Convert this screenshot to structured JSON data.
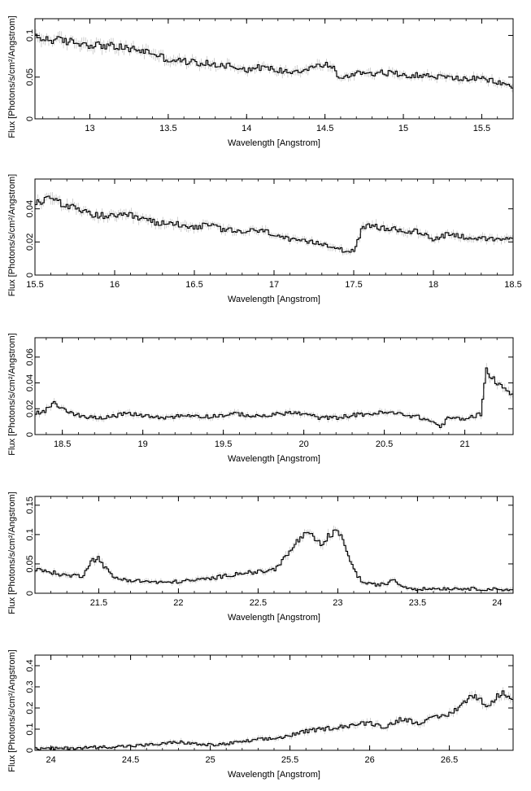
{
  "chart_data": [
    {
      "type": "line",
      "xlabel": "Wavelength [Angstrom]",
      "ylabel": "Flux [Photons/s/cm²/Angstrom]",
      "xlim": [
        12.65,
        15.7
      ],
      "ylim": [
        0,
        0.12
      ],
      "xticks": [
        "13",
        "13.5",
        "14",
        "14.5",
        "15",
        "15.5"
      ],
      "yticks": [
        "0",
        "0.05",
        "0.1"
      ],
      "grid": false,
      "points": [
        [
          12.65,
          0.097
        ],
        [
          12.8,
          0.094
        ],
        [
          12.9,
          0.092
        ],
        [
          13.0,
          0.089
        ],
        [
          13.1,
          0.088
        ],
        [
          13.2,
          0.085
        ],
        [
          13.3,
          0.083
        ],
        [
          13.4,
          0.079
        ],
        [
          13.5,
          0.071
        ],
        [
          13.6,
          0.069
        ],
        [
          13.7,
          0.067
        ],
        [
          13.8,
          0.065
        ],
        [
          13.9,
          0.064
        ],
        [
          14.0,
          0.059
        ],
        [
          14.1,
          0.062
        ],
        [
          14.2,
          0.058
        ],
        [
          14.3,
          0.057
        ],
        [
          14.4,
          0.061
        ],
        [
          14.5,
          0.065
        ],
        [
          14.55,
          0.063
        ],
        [
          14.6,
          0.046
        ],
        [
          14.7,
          0.056
        ],
        [
          14.8,
          0.055
        ],
        [
          14.9,
          0.055
        ],
        [
          15.0,
          0.053
        ],
        [
          15.1,
          0.052
        ],
        [
          15.2,
          0.051
        ],
        [
          15.3,
          0.049
        ],
        [
          15.4,
          0.048
        ],
        [
          15.5,
          0.048
        ],
        [
          15.6,
          0.044
        ],
        [
          15.7,
          0.038
        ]
      ]
    },
    {
      "type": "line",
      "xlabel": "Wavelength [Angstrom]",
      "ylabel": "Flux [Photons/s/cm²/Angstrom]",
      "xlim": [
        15.5,
        18.5
      ],
      "ylim": [
        0,
        0.058
      ],
      "xticks": [
        "15.5",
        "16",
        "16.5",
        "17",
        "17.5",
        "18",
        "18.5"
      ],
      "yticks": [
        "0",
        "0.02",
        "0.04"
      ],
      "grid": false,
      "points": [
        [
          15.5,
          0.043
        ],
        [
          15.6,
          0.047
        ],
        [
          15.7,
          0.042
        ],
        [
          15.8,
          0.038
        ],
        [
          15.9,
          0.036
        ],
        [
          16.0,
          0.035
        ],
        [
          16.1,
          0.036
        ],
        [
          16.2,
          0.033
        ],
        [
          16.3,
          0.031
        ],
        [
          16.4,
          0.031
        ],
        [
          16.5,
          0.029
        ],
        [
          16.6,
          0.03
        ],
        [
          16.7,
          0.027
        ],
        [
          16.8,
          0.026
        ],
        [
          16.9,
          0.027
        ],
        [
          17.0,
          0.025
        ],
        [
          17.1,
          0.021
        ],
        [
          17.2,
          0.02
        ],
        [
          17.3,
          0.019
        ],
        [
          17.4,
          0.017
        ],
        [
          17.45,
          0.014
        ],
        [
          17.5,
          0.015
        ],
        [
          17.55,
          0.027
        ],
        [
          17.6,
          0.03
        ],
        [
          17.7,
          0.028
        ],
        [
          17.8,
          0.027
        ],
        [
          17.9,
          0.026
        ],
        [
          18.0,
          0.022
        ],
        [
          18.1,
          0.025
        ],
        [
          18.2,
          0.023
        ],
        [
          18.3,
          0.022
        ],
        [
          18.4,
          0.021
        ],
        [
          18.5,
          0.023
        ]
      ]
    },
    {
      "type": "line",
      "xlabel": "Wavelength [Angstrom]",
      "ylabel": "Flux [Photons/s/cm²/Angstrom]",
      "xlim": [
        18.33,
        21.3
      ],
      "ylim": [
        0,
        0.075
      ],
      "xticks": [
        "18.5",
        "19",
        "19.5",
        "20",
        "20.5",
        "21"
      ],
      "yticks": [
        "0",
        "0.02",
        "0.04",
        "0.06"
      ],
      "grid": false,
      "points": [
        [
          18.33,
          0.016
        ],
        [
          18.4,
          0.019
        ],
        [
          18.45,
          0.024
        ],
        [
          18.5,
          0.02
        ],
        [
          18.6,
          0.015
        ],
        [
          18.7,
          0.013
        ],
        [
          18.8,
          0.014
        ],
        [
          18.9,
          0.016
        ],
        [
          19.0,
          0.015
        ],
        [
          19.1,
          0.013
        ],
        [
          19.2,
          0.014
        ],
        [
          19.3,
          0.015
        ],
        [
          19.4,
          0.014
        ],
        [
          19.5,
          0.015
        ],
        [
          19.6,
          0.016
        ],
        [
          19.7,
          0.014
        ],
        [
          19.8,
          0.015
        ],
        [
          19.9,
          0.017
        ],
        [
          20.0,
          0.016
        ],
        [
          20.1,
          0.013
        ],
        [
          20.2,
          0.013
        ],
        [
          20.3,
          0.015
        ],
        [
          20.4,
          0.016
        ],
        [
          20.5,
          0.017
        ],
        [
          20.6,
          0.016
        ],
        [
          20.7,
          0.014
        ],
        [
          20.8,
          0.01
        ],
        [
          20.85,
          0.006
        ],
        [
          20.9,
          0.013
        ],
        [
          21.0,
          0.012
        ],
        [
          21.1,
          0.016
        ],
        [
          21.13,
          0.05
        ],
        [
          21.2,
          0.04
        ],
        [
          21.25,
          0.035
        ],
        [
          21.3,
          0.032
        ]
      ]
    },
    {
      "type": "line",
      "xlabel": "Wavelength [Angstrom]",
      "ylabel": "Flux [Photons/s/cm²/Angstrom]",
      "xlim": [
        21.1,
        24.1
      ],
      "ylim": [
        0,
        0.165
      ],
      "xticks": [
        "21.5",
        "22",
        "22.5",
        "23",
        "23.5",
        "24"
      ],
      "yticks": [
        "0",
        "0.05",
        "0.1",
        "0.15"
      ],
      "grid": false,
      "points": [
        [
          21.1,
          0.04
        ],
        [
          21.2,
          0.036
        ],
        [
          21.3,
          0.03
        ],
        [
          21.4,
          0.03
        ],
        [
          21.45,
          0.055
        ],
        [
          21.5,
          0.06
        ],
        [
          21.55,
          0.04
        ],
        [
          21.6,
          0.026
        ],
        [
          21.7,
          0.022
        ],
        [
          21.8,
          0.02
        ],
        [
          21.9,
          0.018
        ],
        [
          22.0,
          0.02
        ],
        [
          22.1,
          0.022
        ],
        [
          22.2,
          0.025
        ],
        [
          22.3,
          0.03
        ],
        [
          22.4,
          0.035
        ],
        [
          22.5,
          0.036
        ],
        [
          22.6,
          0.04
        ],
        [
          22.65,
          0.055
        ],
        [
          22.7,
          0.07
        ],
        [
          22.75,
          0.09
        ],
        [
          22.8,
          0.1
        ],
        [
          22.85,
          0.095
        ],
        [
          22.9,
          0.08
        ],
        [
          22.95,
          0.1
        ],
        [
          23.0,
          0.105
        ],
        [
          23.05,
          0.08
        ],
        [
          23.1,
          0.04
        ],
        [
          23.15,
          0.02
        ],
        [
          23.2,
          0.015
        ],
        [
          23.3,
          0.015
        ],
        [
          23.35,
          0.025
        ],
        [
          23.4,
          0.012
        ],
        [
          23.5,
          0.007
        ],
        [
          23.6,
          0.008
        ],
        [
          23.7,
          0.008
        ],
        [
          23.8,
          0.008
        ],
        [
          23.9,
          0.007
        ],
        [
          24.0,
          0.007
        ],
        [
          24.1,
          0.006
        ]
      ]
    },
    {
      "type": "line",
      "xlabel": "Wavelength [Angstrom]",
      "ylabel": "Flux [Photons/s/cm²/Angstrom]",
      "xlim": [
        23.9,
        26.9
      ],
      "ylim": [
        0,
        0.45
      ],
      "xticks": [
        "24",
        "24.5",
        "25",
        "25.5",
        "26",
        "26.5"
      ],
      "yticks": [
        "0",
        "0.1",
        "0.2",
        "0.3",
        "0.4"
      ],
      "grid": false,
      "points": [
        [
          23.9,
          0.007
        ],
        [
          24.1,
          0.01
        ],
        [
          24.3,
          0.015
        ],
        [
          24.5,
          0.02
        ],
        [
          24.7,
          0.03
        ],
        [
          24.8,
          0.04
        ],
        [
          24.9,
          0.03
        ],
        [
          25.0,
          0.025
        ],
        [
          25.1,
          0.03
        ],
        [
          25.2,
          0.04
        ],
        [
          25.3,
          0.05
        ],
        [
          25.4,
          0.055
        ],
        [
          25.5,
          0.07
        ],
        [
          25.6,
          0.09
        ],
        [
          25.7,
          0.1
        ],
        [
          25.8,
          0.11
        ],
        [
          25.9,
          0.12
        ],
        [
          26.0,
          0.13
        ],
        [
          26.1,
          0.11
        ],
        [
          26.2,
          0.15
        ],
        [
          26.3,
          0.13
        ],
        [
          26.4,
          0.15
        ],
        [
          26.5,
          0.17
        ],
        [
          26.55,
          0.2
        ],
        [
          26.6,
          0.23
        ],
        [
          26.65,
          0.26
        ],
        [
          26.7,
          0.24
        ],
        [
          26.75,
          0.2
        ],
        [
          26.8,
          0.26
        ],
        [
          26.85,
          0.27
        ],
        [
          26.9,
          0.25
        ]
      ]
    }
  ]
}
